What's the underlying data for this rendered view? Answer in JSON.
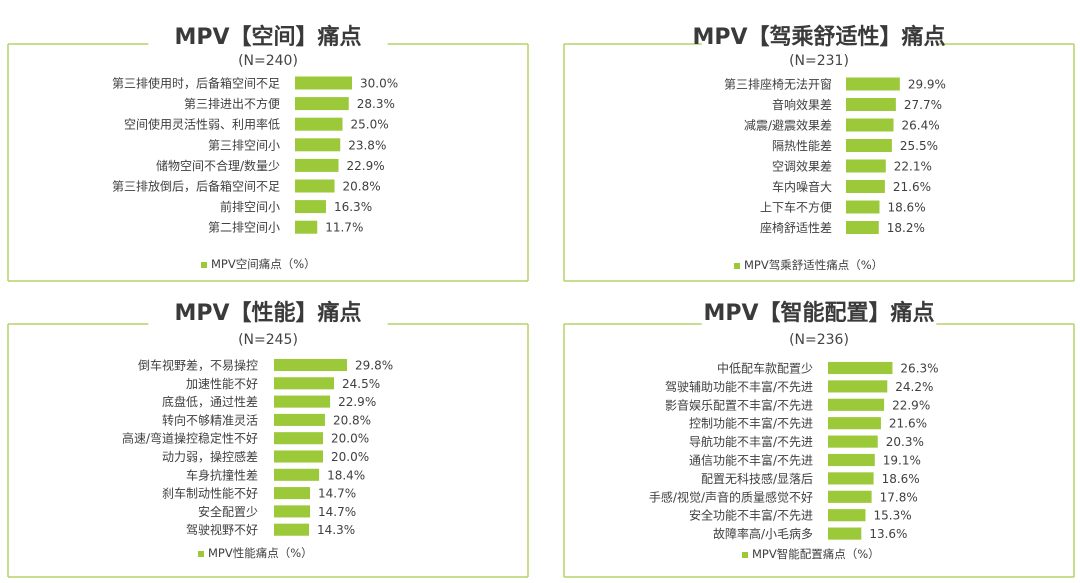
{
  "colors": {
    "bar": "#9bc93a",
    "border": "#b5d36a",
    "text": "#404040"
  },
  "chart_data": [
    {
      "type": "bar",
      "orientation": "horizontal",
      "title": "MPV【空间】痛点",
      "subtitle": "(N=240)",
      "legend": "MPV空间痛点（%）",
      "legend_position": "bottom",
      "categories": [
        "第三排使用时，后备箱空间不足",
        "第三排进出不方便",
        "空间使用灵活性弱、利用率低",
        "第三排空间小",
        "储物空间不合理/数量少",
        "第三排放倒后，后备箱空间不足",
        "前排空间小",
        "第二排空间小"
      ],
      "values": [
        30.0,
        28.3,
        25.0,
        23.8,
        22.9,
        20.8,
        16.3,
        11.7
      ],
      "value_labels": [
        "30.0%",
        "28.3%",
        "25.0%",
        "23.8%",
        "22.9%",
        "20.8%",
        "16.3%",
        "11.7%"
      ],
      "xlim": [
        0,
        30
      ]
    },
    {
      "type": "bar",
      "orientation": "horizontal",
      "title": "MPV【驾乘舒适性】痛点",
      "subtitle": "(N=231)",
      "legend": "MPV驾乘舒适性痛点（%）",
      "legend_position": "bottom",
      "categories": [
        "第三排座椅无法开窗",
        "音响效果差",
        "减震/避震效果差",
        "隔热性能差",
        "空调效果差",
        "车内噪音大",
        "上下车不方便",
        "座椅舒适性差"
      ],
      "values": [
        29.9,
        27.7,
        26.4,
        25.5,
        22.1,
        21.6,
        18.6,
        18.2
      ],
      "value_labels": [
        "29.9%",
        "27.7%",
        "26.4%",
        "25.5%",
        "22.1%",
        "21.6%",
        "18.6%",
        "18.2%"
      ],
      "xlim": [
        0,
        30
      ]
    },
    {
      "type": "bar",
      "orientation": "horizontal",
      "title": "MPV【性能】痛点",
      "subtitle": "(N=245)",
      "legend": "MPV性能痛点（%）",
      "legend_position": "bottom",
      "categories": [
        "倒车视野差，不易操控",
        "加速性能不好",
        "底盘低，通过性差",
        "转向不够精准灵活",
        "高速/弯道操控稳定性不好",
        "动力弱，操控感差",
        "车身抗撞性差",
        "刹车制动性能不好",
        "安全配置少",
        "驾驶视野不好"
      ],
      "values": [
        29.8,
        24.5,
        22.9,
        20.8,
        20.0,
        20.0,
        18.4,
        14.7,
        14.7,
        14.3
      ],
      "value_labels": [
        "29.8%",
        "24.5%",
        "22.9%",
        "20.8%",
        "20.0%",
        "20.0%",
        "18.4%",
        "14.7%",
        "14.7%",
        "14.3%"
      ],
      "xlim": [
        0,
        30
      ]
    },
    {
      "type": "bar",
      "orientation": "horizontal",
      "title": "MPV【智能配置】痛点",
      "subtitle": "(N=236)",
      "legend": "MPV智能配置痛点（%）",
      "legend_position": "bottom",
      "categories": [
        "中低配车款配置少",
        "驾驶辅助功能不丰富/不先进",
        "影音娱乐配置不丰富/不先进",
        "控制功能不丰富/不先进",
        "导航功能不丰富/不先进",
        "通信功能不丰富/不先进",
        "配置无科技感/显落后",
        "手感/视觉/声音的质量感觉不好",
        "安全功能不丰富/不先进",
        "故障率高/小毛病多"
      ],
      "values": [
        26.3,
        24.2,
        22.9,
        21.6,
        20.3,
        19.1,
        18.6,
        17.8,
        15.3,
        13.6
      ],
      "value_labels": [
        "26.3%",
        "24.2%",
        "22.9%",
        "21.6%",
        "20.3%",
        "19.1%",
        "18.6%",
        "17.8%",
        "15.3%",
        "13.6%"
      ],
      "xlim": [
        0,
        30
      ]
    }
  ]
}
